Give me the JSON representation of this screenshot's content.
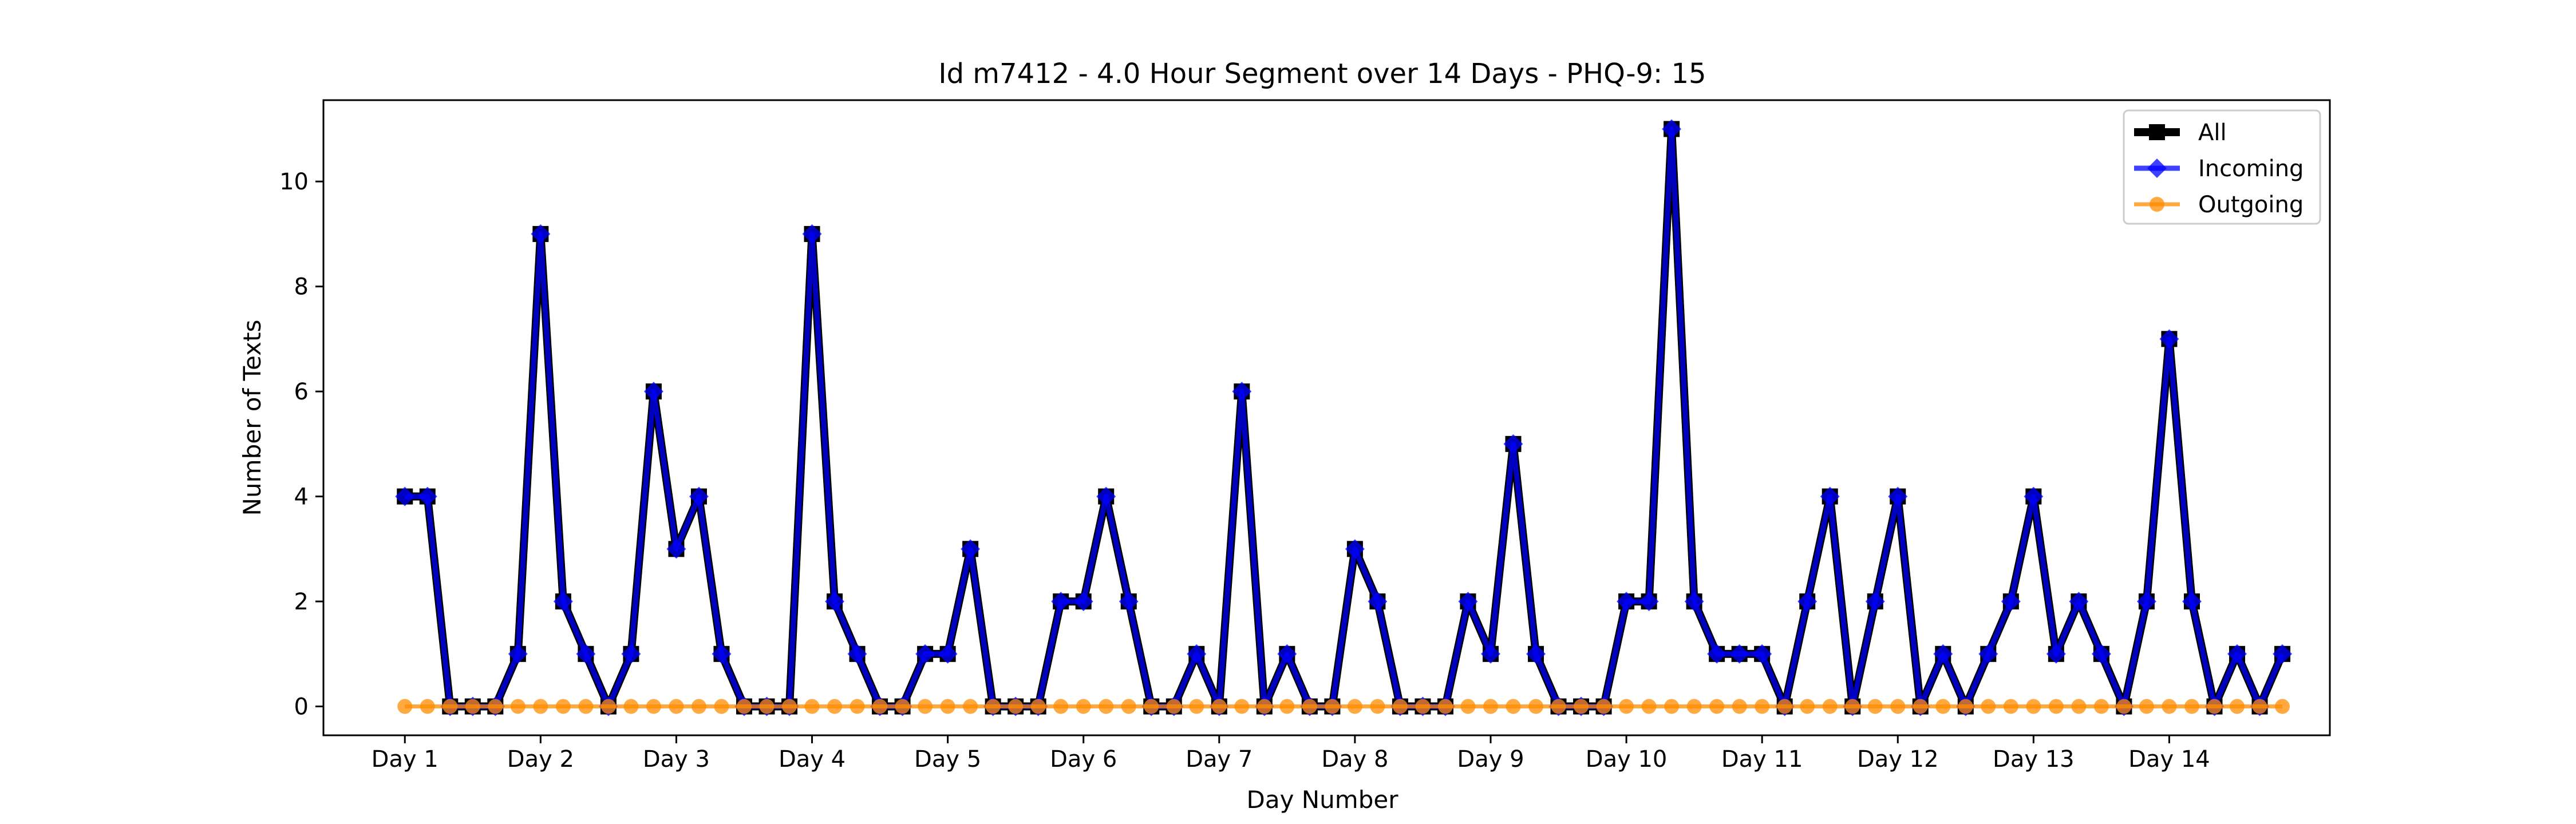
{
  "chart_data": {
    "type": "line",
    "title": "Id m7412 - 4.0 Hour Segment over 14 Days - PHQ-9: 15",
    "xlabel": "Day Number",
    "ylabel": "Number of Texts",
    "x_ticks": [
      "Day 1",
      "Day 2",
      "Day 3",
      "Day 4",
      "Day 5",
      "Day 6",
      "Day 7",
      "Day 8",
      "Day 9",
      "Day 10",
      "Day 11",
      "Day 12",
      "Day 13",
      "Day 14"
    ],
    "ylim": [
      -0.55,
      11.55
    ],
    "y_ticks": [
      0,
      2,
      4,
      6,
      8,
      10
    ],
    "grid": false,
    "legend_position": "top-right",
    "segments_per_day": 6,
    "series": [
      {
        "name": "All",
        "color": "#000000",
        "marker": "square",
        "values": [
          4,
          4,
          0,
          0,
          0,
          1,
          9,
          2,
          1,
          0,
          1,
          6,
          3,
          4,
          1,
          0,
          0,
          0,
          9,
          2,
          1,
          0,
          0,
          1,
          1,
          3,
          0,
          0,
          0,
          2,
          2,
          4,
          2,
          0,
          0,
          1,
          0,
          6,
          0,
          1,
          0,
          0,
          3,
          2,
          0,
          0,
          0,
          2,
          1,
          5,
          1,
          0,
          0,
          0,
          2,
          2,
          11,
          2,
          1,
          1,
          1,
          0,
          2,
          4,
          0,
          2,
          4,
          0,
          1,
          0,
          1,
          2,
          4,
          1,
          2,
          1,
          0,
          2,
          7,
          2,
          0,
          1,
          0,
          1
        ]
      },
      {
        "name": "Incoming",
        "color": "#0000ff",
        "marker": "diamond",
        "values": [
          4,
          4,
          0,
          0,
          0,
          1,
          9,
          2,
          1,
          0,
          1,
          6,
          3,
          4,
          1,
          0,
          0,
          0,
          9,
          2,
          1,
          0,
          0,
          1,
          1,
          3,
          0,
          0,
          0,
          2,
          2,
          4,
          2,
          0,
          0,
          1,
          0,
          6,
          0,
          1,
          0,
          0,
          3,
          2,
          0,
          0,
          0,
          2,
          1,
          5,
          1,
          0,
          0,
          0,
          2,
          2,
          11,
          2,
          1,
          1,
          1,
          0,
          2,
          4,
          0,
          2,
          4,
          0,
          1,
          0,
          1,
          2,
          4,
          1,
          2,
          1,
          0,
          2,
          7,
          2,
          0,
          1,
          0,
          1
        ]
      },
      {
        "name": "Outgoing",
        "color": "#ff8c00",
        "marker": "circle",
        "values": [
          0,
          0,
          0,
          0,
          0,
          0,
          0,
          0,
          0,
          0,
          0,
          0,
          0,
          0,
          0,
          0,
          0,
          0,
          0,
          0,
          0,
          0,
          0,
          0,
          0,
          0,
          0,
          0,
          0,
          0,
          0,
          0,
          0,
          0,
          0,
          0,
          0,
          0,
          0,
          0,
          0,
          0,
          0,
          0,
          0,
          0,
          0,
          0,
          0,
          0,
          0,
          0,
          0,
          0,
          0,
          0,
          0,
          0,
          0,
          0,
          0,
          0,
          0,
          0,
          0,
          0,
          0,
          0,
          0,
          0,
          0,
          0,
          0,
          0,
          0,
          0,
          0,
          0,
          0,
          0,
          0,
          0,
          0,
          0
        ]
      }
    ]
  }
}
